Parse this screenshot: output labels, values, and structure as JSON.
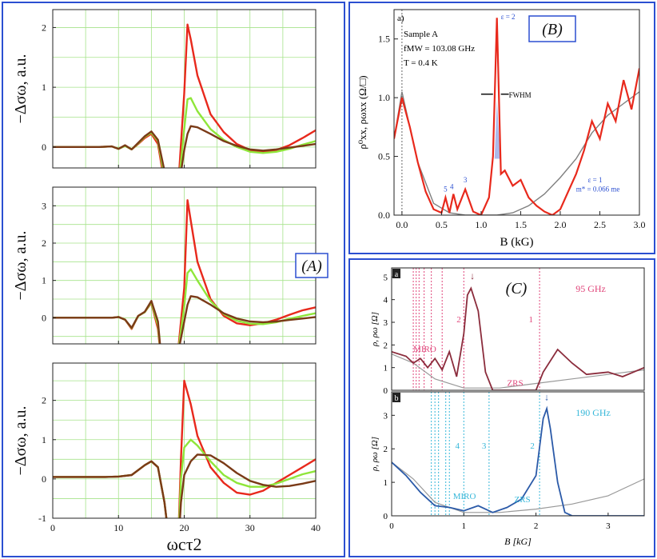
{
  "panels": {
    "A": {
      "label": "(A)"
    },
    "B": {
      "label": "(B)"
    },
    "C": {
      "label": "(C)"
    }
  },
  "chart_data": [
    {
      "id": "A",
      "type": "line",
      "title": "",
      "xlabel": "ωcτ2",
      "ylabel": "−Δσω,  a.u.",
      "xlim": [
        0,
        40
      ],
      "xticks": [
        "0",
        "10",
        "20",
        "30",
        "40"
      ],
      "grid": true,
      "subplots": [
        {
          "ylim": [
            -0.35,
            2.3
          ],
          "yticks": [
            "0",
            "1",
            "2"
          ],
          "series": [
            {
              "name": "red",
              "color": "#e8291c",
              "x": [
                0,
                7,
                9,
                10,
                11,
                12,
                13,
                14,
                15,
                16,
                17,
                18,
                19,
                20,
                20.5,
                21,
                22,
                24,
                26,
                28,
                30,
                32,
                34,
                36,
                38,
                40
              ],
              "y": [
                0,
                0,
                0.01,
                -0.03,
                0.02,
                -0.04,
                0.05,
                0.15,
                0.22,
                0.05,
                -0.6,
                -1.5,
                -0.8,
                0.9,
                2.05,
                1.8,
                1.2,
                0.55,
                0.25,
                0.05,
                -0.05,
                -0.08,
                -0.05,
                0.03,
                0.15,
                0.28
              ]
            },
            {
              "name": "green",
              "color": "#8fe63a",
              "x": [
                0,
                7,
                9,
                10,
                11,
                12,
                13,
                14,
                15,
                16,
                17,
                18,
                19,
                20,
                20.5,
                21,
                22,
                24,
                26,
                28,
                30,
                32,
                34,
                36,
                38,
                40
              ],
              "y": [
                0,
                0,
                0.01,
                -0.03,
                0.02,
                -0.04,
                0.06,
                0.17,
                0.24,
                0.1,
                -0.5,
                -1.5,
                -0.8,
                0.3,
                0.8,
                0.82,
                0.6,
                0.3,
                0.12,
                0,
                -0.08,
                -0.1,
                -0.08,
                -0.03,
                0.04,
                0.1
              ]
            },
            {
              "name": "brown",
              "color": "#7a3a17",
              "x": [
                0,
                7,
                9,
                10,
                11,
                12,
                13,
                14,
                15,
                16,
                17,
                18,
                19,
                20,
                20.5,
                21,
                22,
                24,
                26,
                28,
                30,
                32,
                34,
                36,
                38,
                40
              ],
              "y": [
                0,
                0,
                0.01,
                -0.03,
                0.03,
                -0.04,
                0.07,
                0.18,
                0.26,
                0.12,
                -0.4,
                -1.5,
                -0.8,
                -0.05,
                0.22,
                0.35,
                0.33,
                0.22,
                0.1,
                0.02,
                -0.04,
                -0.06,
                -0.04,
                -0.01,
                0.02,
                0.05
              ]
            }
          ]
        },
        {
          "ylim": [
            -0.7,
            3.5
          ],
          "yticks": [
            "0",
            "1",
            "2",
            "3"
          ],
          "series": [
            {
              "name": "red",
              "color": "#e8291c",
              "x": [
                0,
                9,
                10,
                11,
                12,
                13,
                14,
                15,
                16,
                17,
                18,
                19,
                20,
                20.5,
                21,
                22,
                24,
                26,
                28,
                30,
                32,
                34,
                36,
                38,
                40
              ],
              "y": [
                0,
                0,
                0.02,
                -0.05,
                -0.3,
                0.05,
                0.15,
                0.4,
                -0.3,
                -2,
                -2,
                -1,
                0.8,
                3.15,
                2.6,
                1.5,
                0.5,
                0.05,
                -0.15,
                -0.2,
                -0.15,
                -0.05,
                0.08,
                0.2,
                0.28
              ]
            },
            {
              "name": "green",
              "color": "#8fe63a",
              "x": [
                0,
                9,
                10,
                11,
                12,
                13,
                14,
                15,
                16,
                17,
                18,
                19,
                20,
                20.5,
                21,
                22,
                24,
                26,
                28,
                30,
                32,
                34,
                36,
                38,
                40
              ],
              "y": [
                0,
                0,
                0.02,
                -0.05,
                -0.28,
                0.05,
                0.15,
                0.42,
                -0.2,
                -2,
                -2,
                -1,
                0.3,
                1.2,
                1.3,
                1.0,
                0.45,
                0.1,
                -0.08,
                -0.16,
                -0.17,
                -0.12,
                -0.03,
                0.05,
                0.12
              ]
            },
            {
              "name": "brown",
              "color": "#7a3a17",
              "x": [
                0,
                9,
                10,
                11,
                12,
                13,
                14,
                15,
                16,
                17,
                18,
                19,
                20,
                20.5,
                21,
                22,
                24,
                26,
                28,
                30,
                32,
                34,
                36,
                38,
                40
              ],
              "y": [
                0,
                0,
                0.02,
                -0.05,
                -0.27,
                0.05,
                0.16,
                0.45,
                -0.1,
                -2,
                -2,
                -1,
                -0.1,
                0.35,
                0.58,
                0.55,
                0.35,
                0.12,
                -0.02,
                -0.1,
                -0.12,
                -0.1,
                -0.06,
                -0.02,
                0.02
              ]
            }
          ]
        },
        {
          "ylim": [
            -1,
            2.95
          ],
          "yticks": [
            "-1",
            "0",
            "1",
            "2"
          ],
          "series": [
            {
              "name": "red",
              "color": "#e8291c",
              "x": [
                0,
                8,
                10,
                12,
                14,
                15,
                16,
                17,
                18,
                19,
                19.5,
                20,
                21,
                22,
                24,
                26,
                28,
                30,
                32,
                34,
                36,
                38,
                40
              ],
              "y": [
                0.05,
                0.05,
                0.06,
                0.1,
                0.35,
                0.45,
                0.3,
                -0.6,
                -2,
                -2,
                0.5,
                2.5,
                1.9,
                1.1,
                0.3,
                -0.1,
                -0.35,
                -0.4,
                -0.3,
                -0.1,
                0.1,
                0.3,
                0.5
              ]
            },
            {
              "name": "green",
              "color": "#8fe63a",
              "x": [
                0,
                8,
                10,
                12,
                14,
                15,
                16,
                17,
                18,
                19,
                19.5,
                20,
                21,
                22,
                24,
                26,
                28,
                30,
                32,
                34,
                36,
                38,
                40
              ],
              "y": [
                0.05,
                0.05,
                0.06,
                0.1,
                0.35,
                0.45,
                0.3,
                -0.6,
                -2,
                -2,
                0,
                0.8,
                1.0,
                0.85,
                0.45,
                0.1,
                -0.1,
                -0.2,
                -0.2,
                -0.12,
                0,
                0.12,
                0.2
              ]
            },
            {
              "name": "brown",
              "color": "#7a3a17",
              "x": [
                0,
                8,
                10,
                12,
                14,
                15,
                16,
                17,
                18,
                19,
                19.5,
                20,
                21,
                22,
                24,
                26,
                28,
                30,
                32,
                34,
                36,
                38,
                40
              ],
              "y": [
                0.05,
                0.05,
                0.06,
                0.1,
                0.35,
                0.45,
                0.3,
                -0.6,
                -2,
                -2,
                -0.6,
                0.1,
                0.45,
                0.62,
                0.6,
                0.4,
                0.15,
                -0.05,
                -0.15,
                -0.2,
                -0.18,
                -0.12,
                -0.05
              ]
            }
          ]
        }
      ]
    },
    {
      "id": "B",
      "type": "line",
      "xlabel": "B (kG)",
      "ylabel": "ρ⁰xx, ρωxx (Ω/□)",
      "xlim": [
        -0.1,
        3.0
      ],
      "ylim": [
        0,
        1.75
      ],
      "xticks": [
        "0.0",
        "0.5",
        "1.0",
        "1.5",
        "2.0",
        "2.5",
        "3.0"
      ],
      "yticks": [
        "0.0",
        "0.5",
        "1.0",
        "1.5"
      ],
      "annotations": {
        "corner": "a)",
        "sample": "Sample A",
        "freq": "fMW = 103.08 GHz",
        "temp": "T = 0.4 K",
        "fwhm": "FWHM",
        "eps2": "ε = 2",
        "eps1": "ε = 1",
        "mass": "m* = 0.066 me",
        "n5": "5",
        "n4": "4",
        "n3": "3"
      },
      "series": [
        {
          "name": "dark (ρ⁰xx)",
          "color": "#7f7f7f",
          "x": [
            -0.1,
            0,
            0.2,
            0.4,
            0.6,
            0.8,
            1.0,
            1.2,
            1.4,
            1.6,
            1.8,
            2.0,
            2.2,
            2.4,
            2.6,
            2.8,
            3.0
          ],
          "y": [
            0.65,
            1.05,
            0.45,
            0.1,
            0.02,
            0.0,
            0.0,
            0.0,
            0.02,
            0.08,
            0.18,
            0.32,
            0.48,
            0.7,
            0.85,
            0.95,
            1.05
          ]
        },
        {
          "name": "irradiated (ρωxx)",
          "color": "#e8291c",
          "x": [
            -0.1,
            0,
            0.1,
            0.2,
            0.3,
            0.4,
            0.5,
            0.55,
            0.6,
            0.65,
            0.7,
            0.8,
            0.9,
            1.0,
            1.1,
            1.15,
            1.2,
            1.25,
            1.3,
            1.4,
            1.5,
            1.6,
            1.7,
            1.8,
            1.9,
            2.0,
            2.1,
            2.2,
            2.3,
            2.4,
            2.5,
            2.6,
            2.7,
            2.8,
            2.9,
            3.0
          ],
          "y": [
            0.65,
            1.0,
            0.75,
            0.45,
            0.2,
            0.05,
            0.02,
            0.15,
            0.02,
            0.18,
            0.05,
            0.22,
            0.03,
            0.0,
            0.15,
            0.5,
            1.68,
            0.35,
            0.38,
            0.25,
            0.3,
            0.15,
            0.08,
            0.03,
            0.0,
            0.05,
            0.2,
            0.35,
            0.55,
            0.8,
            0.65,
            0.95,
            0.8,
            1.15,
            0.9,
            1.25
          ]
        }
      ]
    },
    {
      "id": "C",
      "type": "line",
      "xlabel": "B [kG]",
      "ylabel": "ρ, ρω [Ω]",
      "xlim": [
        0,
        3.5
      ],
      "xticks": [
        "0",
        "1",
        "2",
        "3"
      ],
      "subplots": [
        {
          "tag": "a",
          "freq": "95 GHz",
          "ylim": [
            0,
            5.4
          ],
          "yticks": [
            "0",
            "1",
            "2",
            "3",
            "4",
            "5"
          ],
          "labels": {
            "miro": "MIRO",
            "zrs": "ZRS",
            "n2": "2",
            "n1": "1",
            "arrow": "↓"
          },
          "series": [
            {
              "name": "dark",
              "color": "#999999",
              "x": [
                0,
                0.3,
                0.6,
                1.0,
                1.5,
                2.0,
                2.5,
                3.0,
                3.5
              ],
              "y": [
                1.6,
                1.2,
                0.5,
                0.1,
                0.1,
                0.3,
                0.5,
                0.7,
                0.9
              ]
            },
            {
              "name": "95 GHz",
              "color": "#8b2c3c",
              "x": [
                0,
                0.2,
                0.3,
                0.4,
                0.5,
                0.6,
                0.7,
                0.8,
                0.9,
                1.0,
                1.05,
                1.1,
                1.2,
                1.3,
                1.4,
                1.5,
                1.8,
                2.0,
                2.1,
                2.3,
                2.5,
                2.7,
                3.0,
                3.2,
                3.5
              ],
              "y": [
                1.7,
                1.5,
                1.2,
                1.4,
                1.0,
                1.4,
                0.9,
                1.7,
                0.6,
                2.5,
                4.2,
                4.5,
                3.5,
                0.8,
                0.0,
                0.0,
                0.0,
                0.0,
                0.8,
                1.8,
                1.2,
                0.7,
                0.8,
                0.6,
                1.0
              ]
            }
          ]
        },
        {
          "tag": "b",
          "freq": "190 GHz",
          "ylim": [
            0,
            3.7
          ],
          "yticks": [
            "0",
            "1",
            "2",
            "3"
          ],
          "labels": {
            "miro": "MIRO",
            "zrs": "ZRS",
            "n4": "4",
            "n3": "3",
            "n2": "2",
            "arrow": "↓"
          },
          "series": [
            {
              "name": "dark",
              "color": "#999999",
              "x": [
                0,
                0.3,
                0.6,
                1.0,
                1.5,
                2.0,
                2.5,
                3.0,
                3.5
              ],
              "y": [
                1.6,
                1.1,
                0.4,
                0.1,
                0.1,
                0.2,
                0.35,
                0.6,
                1.1
              ]
            },
            {
              "name": "190 GHz",
              "color": "#2b5aa8",
              "x": [
                0,
                0.2,
                0.4,
                0.6,
                0.8,
                1.0,
                1.2,
                1.4,
                1.6,
                1.8,
                2.0,
                2.1,
                2.15,
                2.2,
                2.3,
                2.4,
                2.5,
                2.7,
                3.0,
                3.5
              ],
              "y": [
                1.6,
                1.2,
                0.7,
                0.3,
                0.25,
                0.15,
                0.3,
                0.1,
                0.25,
                0.5,
                1.2,
                2.9,
                3.2,
                2.6,
                1.0,
                0.1,
                0.0,
                0.0,
                0.0,
                0.0
              ]
            }
          ]
        }
      ]
    }
  ]
}
